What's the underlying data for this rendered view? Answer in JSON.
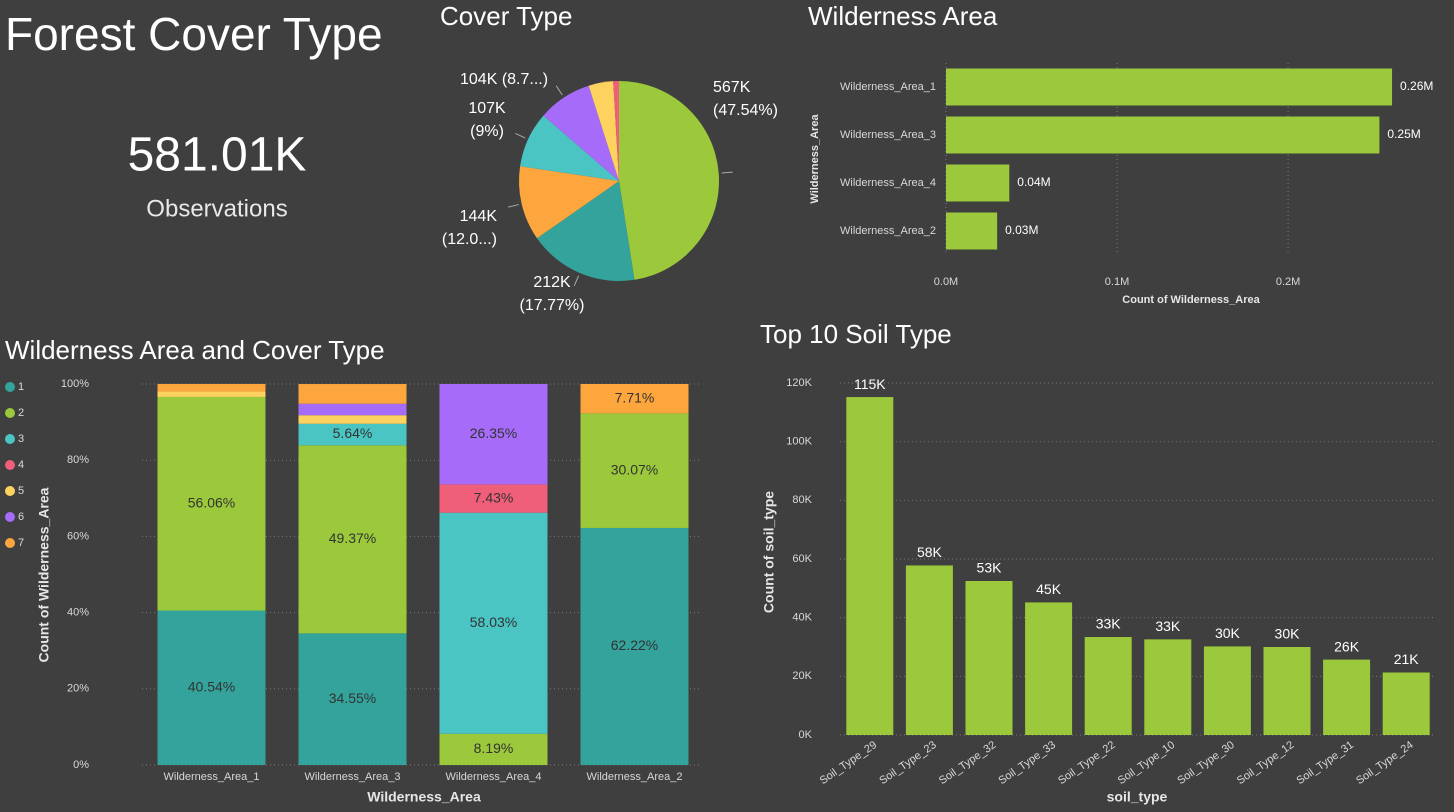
{
  "title": "Forest Cover Type",
  "kpi": {
    "value": "581.01K",
    "label": "Observations"
  },
  "chart_data": [
    {
      "type": "pie",
      "title": "Cover Type",
      "values": [
        566.6,
        211.8,
        143.6,
        107.3,
        104.2,
        47.5,
        11.0
      ],
      "value_labels": [
        [
          "567K",
          "(47.54%)"
        ],
        [
          "212K",
          "(17.77%)"
        ],
        [
          "144K",
          "(12.0...)"
        ],
        [
          "107K",
          "(9%)"
        ],
        [
          "104K (8.7...)"
        ],
        null,
        null
      ],
      "colors": [
        "#9bc93b",
        "#33a39b",
        "#fda63e",
        "#4bc4c4",
        "#a66cf9",
        "#fdd25e",
        "#f05f79"
      ]
    },
    {
      "type": "hbar",
      "title": "Wilderness Area",
      "categories": [
        "Wilderness_Area_1",
        "Wilderness_Area_3",
        "Wilderness_Area_4",
        "Wilderness_Area_2"
      ],
      "values": [
        0.2608,
        0.2534,
        0.037,
        0.0299
      ],
      "value_labels": [
        "0.26M",
        "0.25M",
        "0.04M",
        "0.03M"
      ],
      "xlim": [
        0,
        0.29
      ],
      "xticks": [
        {
          "value": 0,
          "label": "0.0M"
        },
        {
          "value": 0.1,
          "label": "0.1M"
        },
        {
          "value": 0.2,
          "label": "0.2M"
        }
      ],
      "xlabel": "Count of Wilderness_Area",
      "ylabel": "Wilderness_Area",
      "color": "#9bc93b",
      "grid": true
    },
    {
      "type": "stacked100",
      "title": "Wilderness Area and Cover Type",
      "categories": [
        "Wilderness_Area_1",
        "Wilderness_Area_3",
        "Wilderness_Area_4",
        "Wilderness_Area_2"
      ],
      "series": [
        {
          "name": "1",
          "color": "#33a39b",
          "values": [
            40.54,
            34.55,
            0,
            62.22
          ],
          "value_labels": [
            "40.54%",
            "34.55%",
            null,
            "62.22%"
          ]
        },
        {
          "name": "2",
          "color": "#9bc93b",
          "values": [
            56.06,
            49.37,
            8.19,
            30.07
          ],
          "value_labels": [
            "56.06%",
            "49.37%",
            "8.19%",
            "30.07%"
          ]
        },
        {
          "name": "3",
          "color": "#4bc4c4",
          "values": [
            0,
            5.64,
            58.03,
            0
          ],
          "value_labels": [
            null,
            "5.64%",
            "58.03%",
            null
          ]
        },
        {
          "name": "4",
          "color": "#f05f79",
          "values": [
            0,
            0,
            7.43,
            0
          ],
          "value_labels": [
            null,
            null,
            "7.43%",
            null
          ]
        },
        {
          "name": "5",
          "color": "#fdd25e",
          "values": [
            1.45,
            2.25,
            0,
            0
          ],
          "value_labels": [
            null,
            null,
            null,
            null
          ]
        },
        {
          "name": "6",
          "color": "#a66cf9",
          "values": [
            0,
            3.01,
            26.35,
            0
          ],
          "value_labels": [
            null,
            null,
            "26.35%",
            null
          ]
        },
        {
          "name": "7",
          "color": "#fda63e",
          "values": [
            1.96,
            5.17,
            0,
            7.71
          ],
          "value_labels": [
            null,
            null,
            null,
            "7.71%"
          ]
        }
      ],
      "ylim": [
        0,
        100
      ],
      "yticks": [
        {
          "value": 0,
          "label": "0%"
        },
        {
          "value": 20,
          "label": "20%"
        },
        {
          "value": 40,
          "label": "40%"
        },
        {
          "value": 60,
          "label": "60%"
        },
        {
          "value": 80,
          "label": "80%"
        },
        {
          "value": 100,
          "label": "100%"
        }
      ],
      "xlabel": "Wilderness_Area",
      "ylabel": "Count of Wilderness_Area",
      "grid": true
    },
    {
      "type": "bar",
      "title": "Top 10 Soil Type",
      "categories": [
        "Soil_Type_29",
        "Soil_Type_23",
        "Soil_Type_32",
        "Soil_Type_33",
        "Soil_Type_22",
        "Soil_Type_10",
        "Soil_Type_30",
        "Soil_Type_12",
        "Soil_Type_31",
        "Soil_Type_24"
      ],
      "values": [
        115.2,
        57.8,
        52.5,
        45.2,
        33.4,
        32.6,
        30.2,
        30.0,
        25.7,
        21.3
      ],
      "value_labels": [
        "115K",
        "58K",
        "53K",
        "45K",
        "33K",
        "33K",
        "30K",
        "30K",
        "26K",
        "21K"
      ],
      "ylim": [
        0,
        120
      ],
      "yticks": [
        {
          "value": 0,
          "label": "0K"
        },
        {
          "value": 20,
          "label": "20K"
        },
        {
          "value": 40,
          "label": "40K"
        },
        {
          "value": 60,
          "label": "60K"
        },
        {
          "value": 80,
          "label": "80K"
        },
        {
          "value": 100,
          "label": "100K"
        },
        {
          "value": 120,
          "label": "120K"
        }
      ],
      "xlabel": "soil_type",
      "ylabel": "Count of soil_type",
      "color": "#9bc93b",
      "grid": true
    }
  ]
}
